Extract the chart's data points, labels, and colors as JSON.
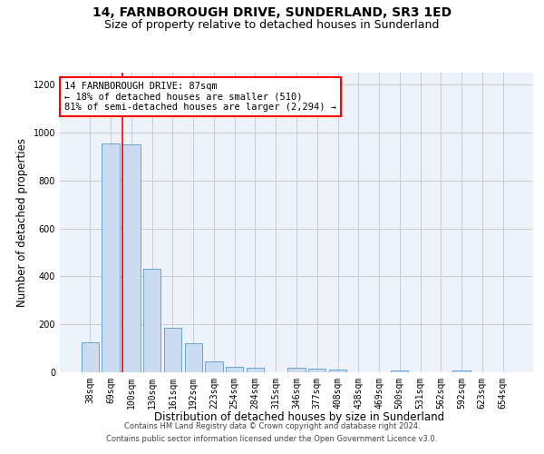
{
  "title": "14, FARNBOROUGH DRIVE, SUNDERLAND, SR3 1ED",
  "subtitle": "Size of property relative to detached houses in Sunderland",
  "xlabel": "Distribution of detached houses by size in Sunderland",
  "ylabel": "Number of detached properties",
  "categories": [
    "38sqm",
    "69sqm",
    "100sqm",
    "130sqm",
    "161sqm",
    "192sqm",
    "223sqm",
    "254sqm",
    "284sqm",
    "315sqm",
    "346sqm",
    "377sqm",
    "408sqm",
    "438sqm",
    "469sqm",
    "500sqm",
    "531sqm",
    "562sqm",
    "592sqm",
    "623sqm",
    "654sqm"
  ],
  "values": [
    125,
    955,
    950,
    430,
    185,
    120,
    45,
    22,
    20,
    0,
    18,
    15,
    10,
    0,
    0,
    8,
    0,
    0,
    8,
    0,
    0
  ],
  "bar_color": "#ccdcf0",
  "bar_edge_color": "#5599cc",
  "vline_x_index": 1.58,
  "vline_color": "red",
  "annotation_text": "14 FARNBOROUGH DRIVE: 87sqm\n← 18% of detached houses are smaller (510)\n81% of semi-detached houses are larger (2,294) →",
  "annotation_box_color": "white",
  "annotation_box_edge": "red",
  "ylim": [
    0,
    1250
  ],
  "yticks": [
    0,
    200,
    400,
    600,
    800,
    1000,
    1200
  ],
  "grid_color": "#cccccc",
  "background_color": "#eef2fb",
  "footer_line1": "Contains HM Land Registry data © Crown copyright and database right 2024.",
  "footer_line2": "Contains public sector information licensed under the Open Government Licence v3.0.",
  "title_fontsize": 10,
  "subtitle_fontsize": 9,
  "tick_fontsize": 7,
  "ylabel_fontsize": 8.5,
  "xlabel_fontsize": 8.5,
  "annotation_fontsize": 7.5,
  "footer_fontsize": 6
}
